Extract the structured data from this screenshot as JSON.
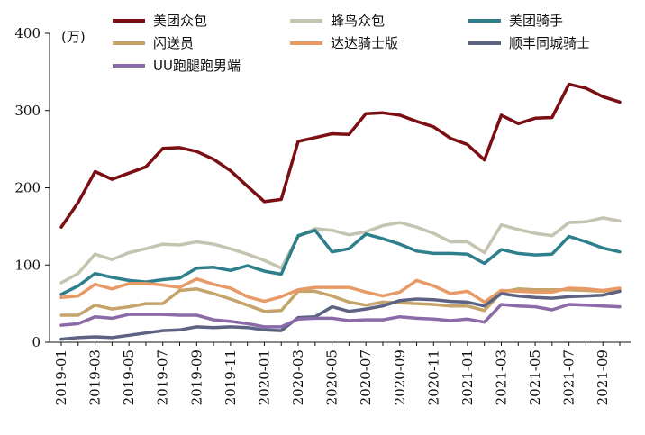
{
  "chart_data": {
    "type": "line",
    "title": "",
    "unit_label": "(万)",
    "xlabel": "",
    "ylabel": "",
    "ylim": [
      0,
      400
    ],
    "yticks": [
      0,
      100,
      200,
      300,
      400
    ],
    "grid": false,
    "legend_position": "top",
    "x": [
      "2019-01",
      "2019-02",
      "2019-03",
      "2019-04",
      "2019-05",
      "2019-06",
      "2019-07",
      "2019-08",
      "2019-09",
      "2019-10",
      "2019-11",
      "2019-12",
      "2020-01",
      "2020-02",
      "2020-03",
      "2020-04",
      "2020-05",
      "2020-06",
      "2020-07",
      "2020-08",
      "2020-09",
      "2020-10",
      "2020-11",
      "2020-12",
      "2021-01",
      "2021-02",
      "2021-03",
      "2021-04",
      "2021-05",
      "2021-06",
      "2021-07",
      "2021-08",
      "2021-09",
      "2021-10"
    ],
    "x_tick_labels": [
      "2019-01",
      "2019-03",
      "2019-05",
      "2019-07",
      "2019-09",
      "2019-11",
      "2020-01",
      "2020-03",
      "2020-05",
      "2020-07",
      "2020-09",
      "2020-11",
      "2021-01",
      "2021-03",
      "2021-05",
      "2021-07",
      "2021-09"
    ],
    "series": [
      {
        "name": "美团众包",
        "color": "#7a0e12",
        "values": [
          149,
          181,
          221,
          211,
          219,
          227,
          251,
          252,
          247,
          237,
          222,
          202,
          182,
          185,
          260,
          265,
          270,
          269,
          296,
          297,
          294,
          286,
          279,
          264,
          256,
          236,
          294,
          283,
          290,
          291,
          334,
          329,
          318,
          311
        ]
      },
      {
        "name": "蜂鸟众包",
        "color": "#c5c4b0",
        "values": [
          77,
          89,
          114,
          107,
          116,
          121,
          127,
          126,
          130,
          127,
          121,
          114,
          106,
          96,
          137,
          147,
          145,
          139,
          143,
          151,
          155,
          149,
          141,
          130,
          130,
          116,
          152,
          146,
          141,
          138,
          155,
          156,
          161,
          157
        ]
      },
      {
        "name": "美团骑手",
        "color": "#2e7f8c",
        "values": [
          62,
          73,
          89,
          84,
          80,
          78,
          81,
          83,
          96,
          97,
          93,
          99,
          92,
          88,
          138,
          145,
          117,
          121,
          140,
          134,
          127,
          118,
          115,
          115,
          114,
          102,
          120,
          115,
          113,
          114,
          137,
          130,
          122,
          117
        ]
      },
      {
        "name": "闪送员",
        "color": "#c4a46a",
        "values": [
          35,
          35,
          48,
          43,
          46,
          50,
          50,
          67,
          69,
          63,
          56,
          48,
          40,
          41,
          66,
          66,
          60,
          52,
          48,
          52,
          51,
          50,
          49,
          47,
          47,
          41,
          65,
          69,
          68,
          68,
          68,
          67,
          66,
          68
        ]
      },
      {
        "name": "达达骑士版",
        "color": "#e89a66",
        "values": [
          58,
          60,
          75,
          69,
          76,
          76,
          74,
          71,
          82,
          75,
          70,
          59,
          53,
          59,
          68,
          71,
          71,
          71,
          65,
          60,
          65,
          80,
          73,
          63,
          66,
          52,
          67,
          66,
          65,
          65,
          70,
          69,
          67,
          70
        ]
      },
      {
        "name": "顺丰同城骑士",
        "color": "#5c6282",
        "values": [
          4,
          6,
          7,
          6,
          9,
          12,
          15,
          16,
          20,
          19,
          20,
          19,
          16,
          15,
          32,
          33,
          46,
          40,
          43,
          47,
          54,
          56,
          55,
          53,
          52,
          47,
          63,
          60,
          58,
          57,
          59,
          60,
          61,
          66
        ]
      },
      {
        "name": "UU跑腿跑男端",
        "color": "#8b6aa8",
        "values": [
          22,
          24,
          33,
          31,
          36,
          36,
          36,
          35,
          35,
          29,
          27,
          24,
          20,
          20,
          30,
          31,
          31,
          28,
          29,
          29,
          33,
          31,
          30,
          28,
          30,
          26,
          49,
          47,
          46,
          42,
          49,
          48,
          47,
          46
        ]
      }
    ]
  }
}
